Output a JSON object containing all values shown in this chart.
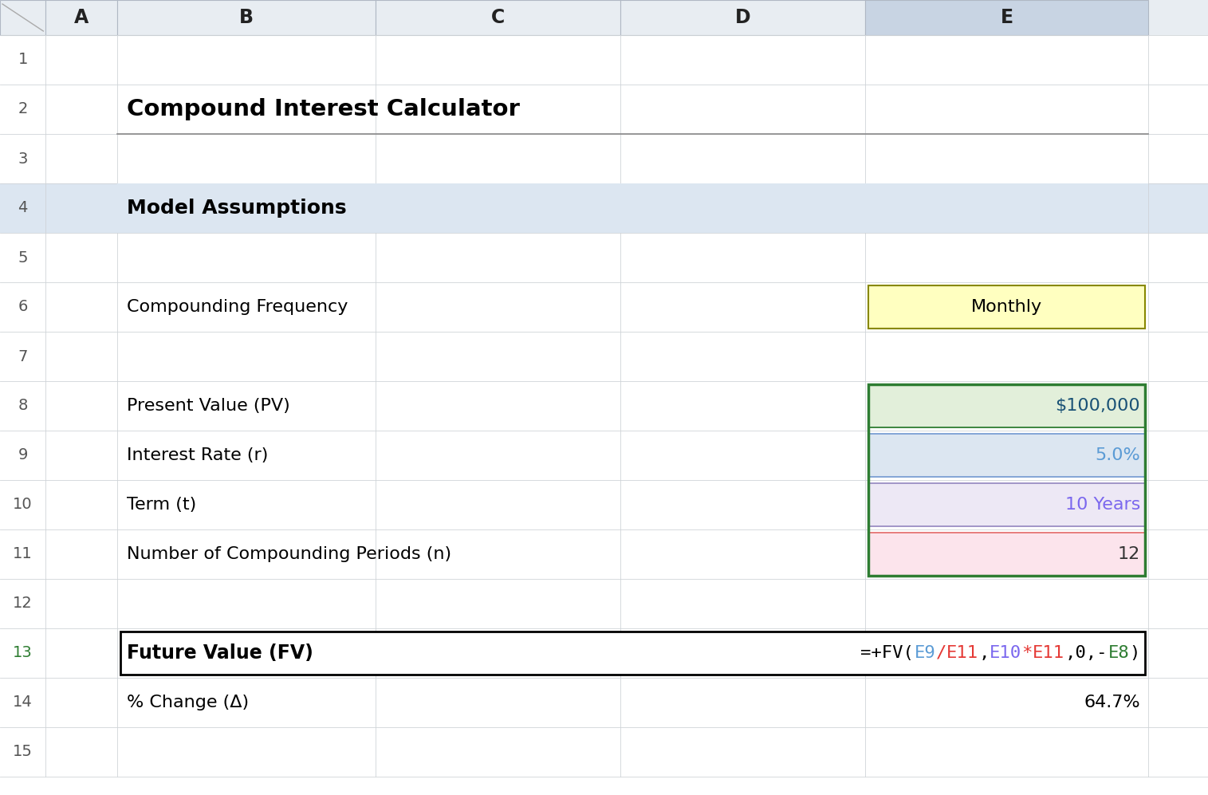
{
  "title": "Compound Interest Calculator",
  "bg_color": "#ffffff",
  "header_bg": "#e8edf2",
  "row4_bg": "#dce6f1",
  "cell_e6_bg": "#ffffc0",
  "cell_e6_text": "Monthly",
  "cell_e8_bg": "#e2efda",
  "cell_e8_border": "#2e7d32",
  "cell_e8_text": "$100,000",
  "cell_e8_color": "#1a5276",
  "cell_e9_bg": "#dce6f1",
  "cell_e9_border": "#7b9fd4",
  "cell_e9_text": "5.0%",
  "cell_e9_color": "#5b9bd5",
  "cell_e10_bg": "#ede8f5",
  "cell_e10_border": "#9b8ec4",
  "cell_e10_text": "10 Years",
  "cell_e10_color": "#7b68ee",
  "cell_e11_bg": "#fce4ec",
  "cell_e11_border": "#e57373",
  "cell_e11_text": "12",
  "cell_e11_color": "#333333",
  "fv_label": "Future Value (FV)",
  "fv_formula_parts": [
    {
      "text": "=+FV(",
      "color": "#000000"
    },
    {
      "text": "E9",
      "color": "#5b9bd5"
    },
    {
      "text": "/",
      "color": "#e53935"
    },
    {
      "text": "E11",
      "color": "#e53935"
    },
    {
      "text": ",",
      "color": "#000000"
    },
    {
      "text": "E10",
      "color": "#7b68ee"
    },
    {
      "text": "*",
      "color": "#e53935"
    },
    {
      "text": "E11",
      "color": "#e53935"
    },
    {
      "text": ",0,-",
      "color": "#000000"
    },
    {
      "text": "E8",
      "color": "#2e7d32"
    },
    {
      "text": ")",
      "color": "#000000"
    }
  ],
  "pct_change_label": "% Change (Δ)",
  "pct_change_value": "64.7%"
}
